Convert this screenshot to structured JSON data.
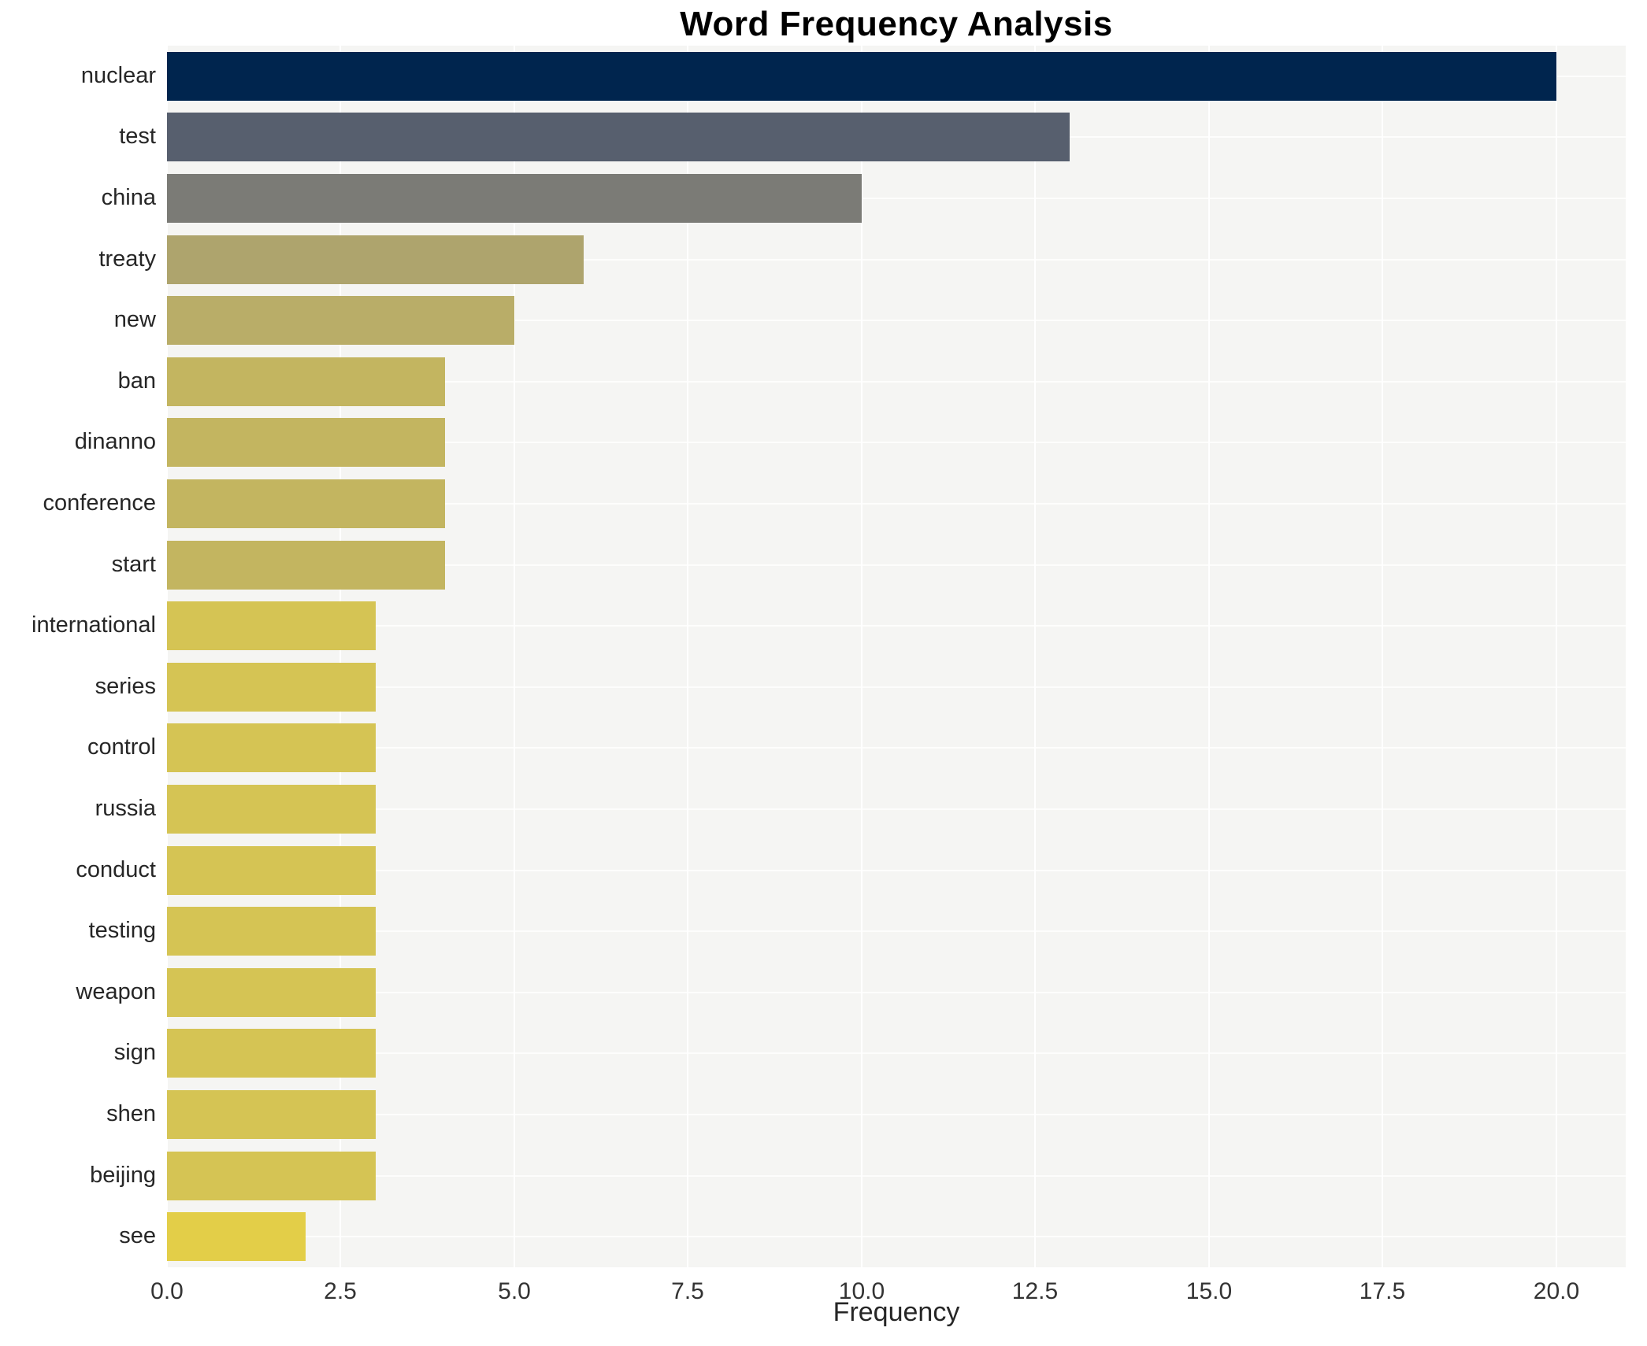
{
  "colors": {
    "figure_bg": "#ffffff",
    "plot_bg": "#f5f5f3",
    "grid": "#ffffff",
    "title_text": "#000000",
    "tick_text": "#333333",
    "label_text": "#262626"
  },
  "chart_data": {
    "type": "bar",
    "orientation": "horizontal",
    "title": "Word Frequency Analysis",
    "xlabel": "Frequency",
    "ylabel": "",
    "grid": true,
    "legend": false,
    "xlim": [
      0,
      21
    ],
    "xticks": [
      0,
      2.5,
      5,
      7.5,
      10,
      12.5,
      15,
      17.5,
      20
    ],
    "xtick_labels": [
      "0.0",
      "2.5",
      "5.0",
      "7.5",
      "10.0",
      "12.5",
      "15.0",
      "17.5",
      "20.0"
    ],
    "categories": [
      "nuclear",
      "test",
      "china",
      "treaty",
      "new",
      "ban",
      "dinanno",
      "conference",
      "start",
      "international",
      "series",
      "control",
      "russia",
      "conduct",
      "testing",
      "weapon",
      "sign",
      "shen",
      "beijing",
      "see"
    ],
    "values": [
      20,
      13,
      10,
      6,
      5,
      4,
      4,
      4,
      4,
      3,
      3,
      3,
      3,
      3,
      3,
      3,
      3,
      3,
      3,
      2
    ],
    "bar_colors": [
      "#00254e",
      "#575f6e",
      "#7b7b76",
      "#aea46d",
      "#b9ad68",
      "#c3b560",
      "#c3b560",
      "#c3b560",
      "#c3b560",
      "#d5c454",
      "#d5c454",
      "#d5c454",
      "#d5c454",
      "#d5c454",
      "#d5c454",
      "#d5c454",
      "#d5c454",
      "#d5c454",
      "#d5c454",
      "#e3ce48"
    ]
  }
}
